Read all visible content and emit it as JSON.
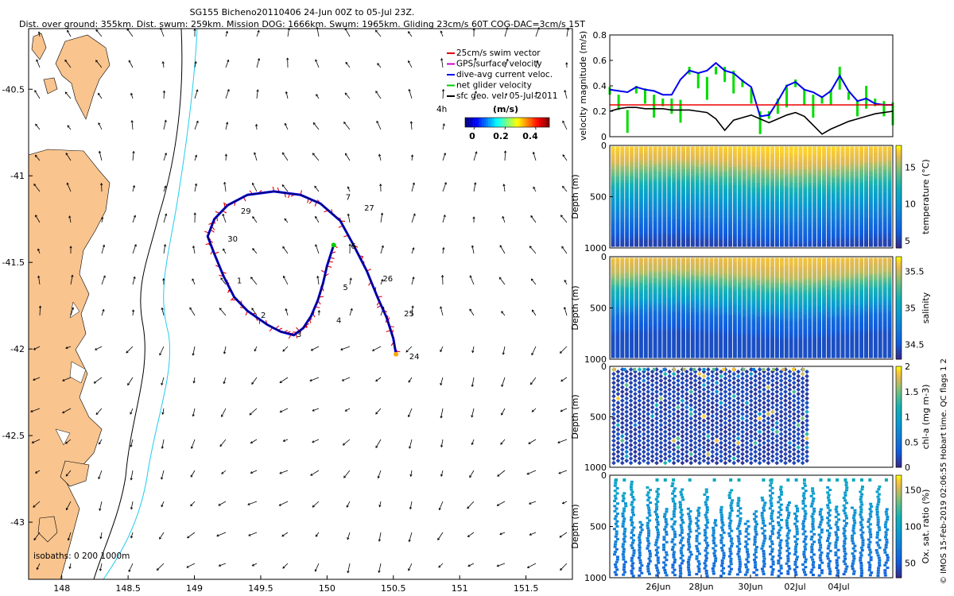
{
  "header": {
    "title": "SG155 Bicheno20110406 24-Jun 00Z to 05-Jul 23Z.",
    "subtitle": "Dist. over ground: 355km. Dist. swum: 259km. Mission DOG: 1666km. Swum: 1965km. Gliding 23cm/s 60T COG-DAC=3cm/s 15T"
  },
  "credit": "© IMOS 15-Feb-2019 02:06:55 Hobart time. QC flags 1  2",
  "chart_data": [
    {
      "type": "scatter",
      "subtype": "map",
      "xlim": [
        147.75,
        151.85
      ],
      "ylim": [
        -43.33,
        -40.15
      ],
      "xticks": [
        "148",
        "148.5",
        "149",
        "149.5",
        "150",
        "150.5",
        "151",
        "151.5"
      ],
      "yticks": [
        "-40.5",
        "-41",
        "-41.5",
        "-42",
        "-42.5",
        "-43"
      ],
      "legend": {
        "items": [
          {
            "label": "25cm/s swim vector",
            "color": "#e00000"
          },
          {
            "label": "GPS surface velocity",
            "color": "#cc00cc"
          },
          {
            "label": "dive-avg current veloc.",
            "color": "#0000ee"
          },
          {
            "label": "net glider velocity",
            "color": "#00cc00"
          },
          {
            "label": "sfc geo. vel. 05-Jul-2011",
            "color": "#000000"
          }
        ],
        "marker_note": "4h",
        "colorbar_title": "(m/s)",
        "colorbar_ticks": [
          "0",
          "0.2",
          "0.4"
        ],
        "placement": "top-right"
      },
      "isobaths_label": "isobaths: 0   200  1000m",
      "track": [
        [
          150.05,
          -41.4
        ],
        [
          150.0,
          -41.52
        ],
        [
          149.97,
          -41.62
        ],
        [
          149.93,
          -41.72
        ],
        [
          149.88,
          -41.81
        ],
        [
          149.82,
          -41.88
        ],
        [
          149.75,
          -41.92
        ],
        [
          149.65,
          -41.9
        ],
        [
          149.55,
          -41.86
        ],
        [
          149.4,
          -41.78
        ],
        [
          149.3,
          -41.7
        ],
        [
          149.22,
          -41.58
        ],
        [
          149.15,
          -41.45
        ],
        [
          149.1,
          -41.35
        ],
        [
          149.15,
          -41.25
        ],
        [
          149.25,
          -41.17
        ],
        [
          149.4,
          -41.11
        ],
        [
          149.6,
          -41.09
        ],
        [
          149.8,
          -41.11
        ],
        [
          149.95,
          -41.16
        ],
        [
          150.1,
          -41.26
        ],
        [
          150.2,
          -41.4
        ],
        [
          150.3,
          -41.55
        ],
        [
          150.38,
          -41.7
        ],
        [
          150.45,
          -41.82
        ],
        [
          150.5,
          -41.94
        ],
        [
          150.52,
          -42.03
        ]
      ],
      "day_labels": [
        {
          "label": "1",
          "lon": 149.32,
          "lat": -41.62
        },
        {
          "label": "2",
          "lon": 149.5,
          "lat": -41.82
        },
        {
          "label": "3",
          "lon": 149.77,
          "lat": -41.93
        },
        {
          "label": "4",
          "lon": 150.07,
          "lat": -41.85
        },
        {
          "label": "5",
          "lon": 150.12,
          "lat": -41.66
        },
        {
          "label": "6",
          "lon": 150.18,
          "lat": -41.42
        },
        {
          "label": "7",
          "lon": 150.14,
          "lat": -41.14
        },
        {
          "label": "27",
          "lon": 150.28,
          "lat": -41.2
        },
        {
          "label": "26",
          "lon": 150.42,
          "lat": -41.61
        },
        {
          "label": "25",
          "lon": 150.58,
          "lat": -41.81
        },
        {
          "label": "24",
          "lon": 150.62,
          "lat": -42.06
        },
        {
          "label": "29",
          "lon": 149.35,
          "lat": -41.22
        },
        {
          "label": "30",
          "lon": 149.25,
          "lat": -41.38
        }
      ]
    },
    {
      "type": "line",
      "ylabel": "velocity magnitude (m/s)",
      "ylim": [
        0,
        0.8
      ],
      "yticks": [
        "0",
        "0.2",
        "0.4",
        "0.6",
        "0.8"
      ],
      "series": [
        {
          "color": "#00dd00",
          "values": [
            0.39,
            0.33,
            0.21,
            0.4,
            0.38,
            0.33,
            0.3,
            0.3,
            0.29,
            0.55,
            0.5,
            0.47,
            0.55,
            0.55,
            0.52,
            0.45,
            0.38,
            0.2,
            0.2,
            0.3,
            0.41,
            0.45,
            0.37,
            0.33,
            0.32,
            0.37,
            0.55,
            0.35,
            0.28,
            0.4,
            0.3,
            0.28,
            0.27
          ]
        },
        {
          "color": "#0000ee",
          "values": [
            0.37,
            0.36,
            0.35,
            0.39,
            0.37,
            0.36,
            0.33,
            0.33,
            0.45,
            0.52,
            0.5,
            0.52,
            0.58,
            0.52,
            0.5,
            0.44,
            0.39,
            0.16,
            0.17,
            0.28,
            0.4,
            0.43,
            0.37,
            0.35,
            0.31,
            0.36,
            0.48,
            0.36,
            0.28,
            0.3,
            0.26,
            0.25,
            0.25
          ]
        },
        {
          "color": "#000000",
          "values": [
            0.2,
            0.22,
            0.23,
            0.23,
            0.22,
            0.22,
            0.22,
            0.21,
            0.21,
            0.21,
            0.2,
            0.19,
            0.14,
            0.05,
            0.13,
            0.15,
            0.17,
            0.14,
            0.11,
            0.14,
            0.17,
            0.19,
            0.16,
            0.09,
            0.02,
            0.06,
            0.09,
            0.12,
            0.14,
            0.16,
            0.18,
            0.19,
            0.2
          ]
        },
        {
          "color": "#ee0000",
          "values": [
            0.25,
            0.25
          ]
        }
      ]
    },
    {
      "type": "heatmap",
      "ylabel": "Depth (m)",
      "ylim": [
        0,
        1000
      ],
      "yticks": [
        "0",
        "500",
        "1000"
      ],
      "colorbar_label": "temperature (°C)",
      "colorbar_ticks": [
        "5",
        "10",
        "15"
      ],
      "range": [
        4,
        18
      ],
      "profile": [
        [
          0,
          17.5
        ],
        [
          150,
          16.5
        ],
        [
          300,
          14.0
        ],
        [
          450,
          11.5
        ],
        [
          600,
          9.5
        ],
        [
          800,
          7.0
        ],
        [
          1000,
          5.0
        ]
      ]
    },
    {
      "type": "heatmap",
      "ylabel": "Depth (m)",
      "ylim": [
        0,
        1000
      ],
      "yticks": [
        "0",
        "500",
        "1000"
      ],
      "colorbar_label": "salinity",
      "colorbar_ticks": [
        "34.5",
        "35",
        "35.5"
      ],
      "range": [
        34.3,
        35.7
      ],
      "profile": [
        [
          0,
          35.6
        ],
        [
          150,
          35.5
        ],
        [
          300,
          35.2
        ],
        [
          450,
          34.95
        ],
        [
          600,
          34.6
        ],
        [
          800,
          34.45
        ],
        [
          1000,
          34.45
        ]
      ]
    },
    {
      "type": "scatter",
      "ylabel": "Depth (m)",
      "ylim": [
        0,
        1000
      ],
      "yticks": [
        "0",
        "500",
        "1000"
      ],
      "colorbar_label": "chl-a (mg m-3)",
      "colorbar_ticks": [
        "0",
        "0.5",
        "1",
        "1.5",
        "2"
      ],
      "range": [
        0,
        2
      ]
    },
    {
      "type": "scatter",
      "ylabel": "Depth (m)",
      "ylim": [
        0,
        1000
      ],
      "yticks": [
        "0",
        "500",
        "1000"
      ],
      "colorbar_label": "Ox. sat. ratio (%)",
      "colorbar_ticks": [
        "50",
        "100",
        "150"
      ],
      "range": [
        30,
        170
      ],
      "xticks": [
        "26Jun",
        "28Jun",
        "30Jun",
        "02Jul",
        "04Jul"
      ]
    }
  ]
}
